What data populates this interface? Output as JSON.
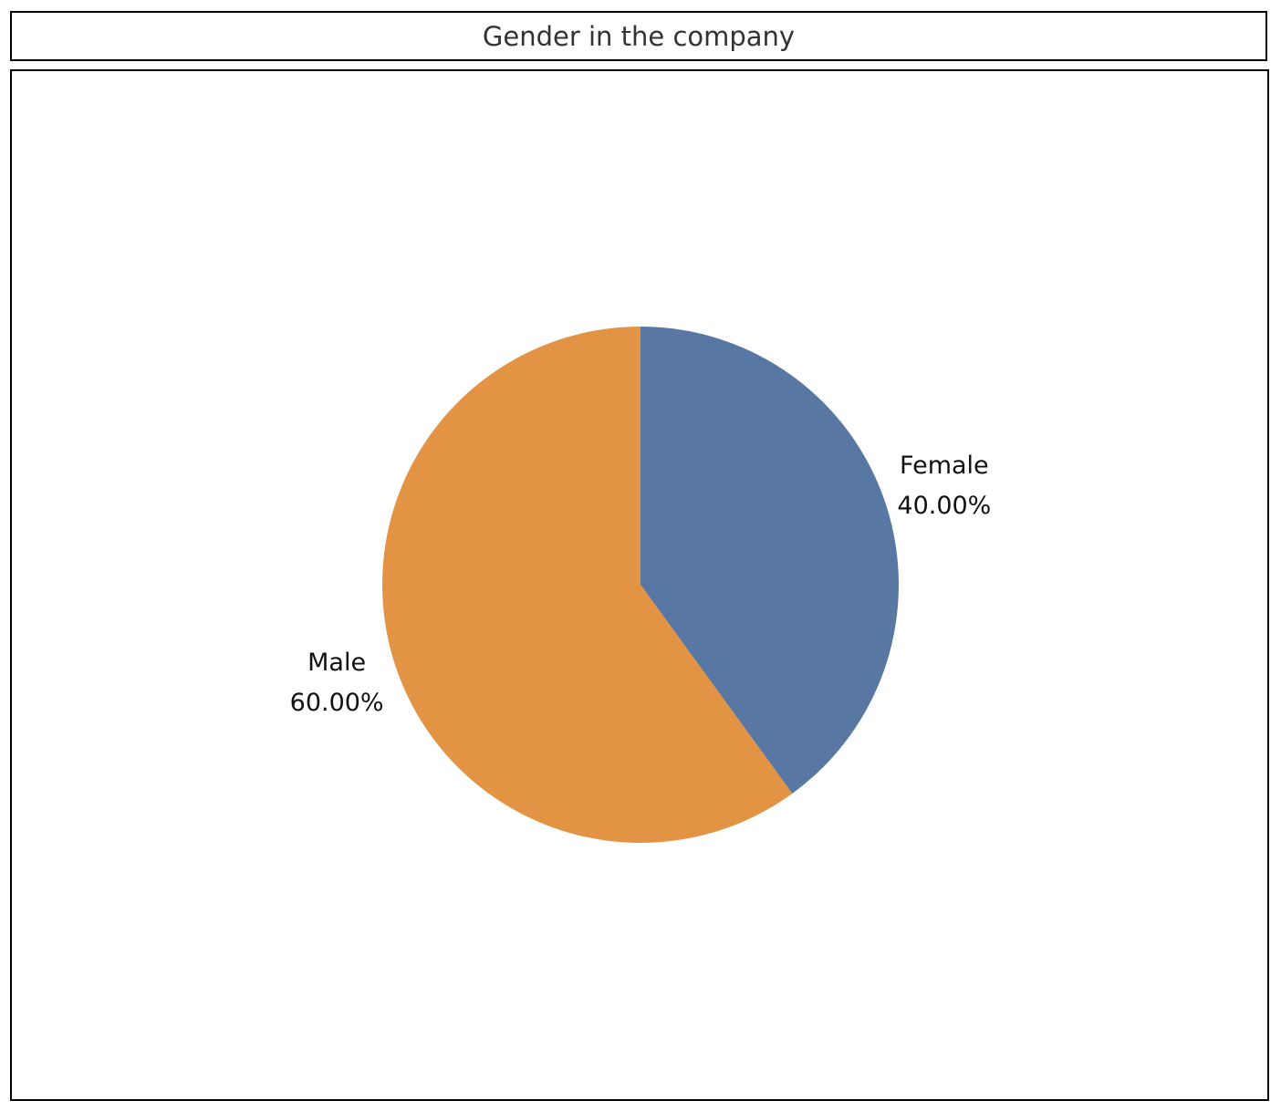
{
  "chart_data": {
    "type": "pie",
    "title": "Gender in the company",
    "slices": [
      {
        "label": "Female",
        "value": 40.0,
        "display": "40.00%",
        "color": "#5977a3"
      },
      {
        "label": "Male",
        "value": 60.0,
        "display": "60.00%",
        "color": "#e29343"
      }
    ],
    "start_angle_deg": 0,
    "direction": "clockwise",
    "legend": "none"
  }
}
